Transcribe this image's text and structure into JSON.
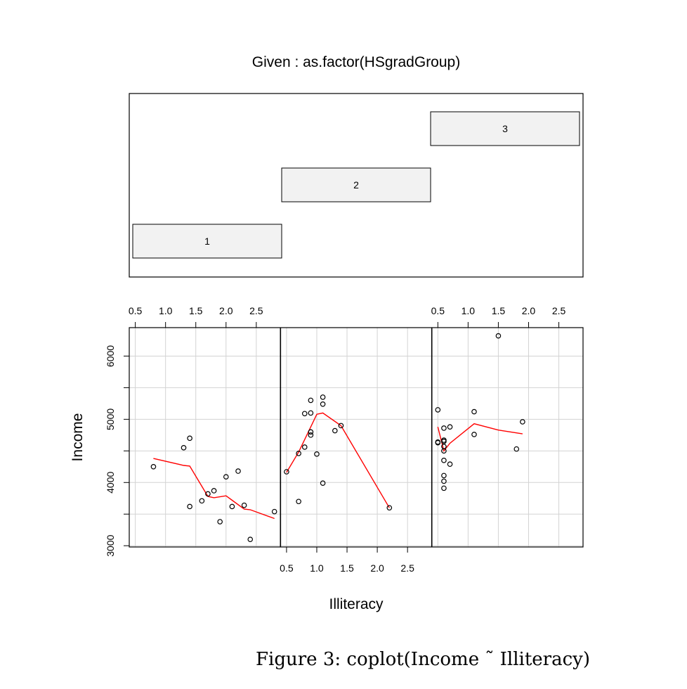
{
  "given": {
    "title": "Given : as.factor(HSgradGroup)",
    "levels": [
      "1",
      "2",
      "3"
    ]
  },
  "figure_caption": "Figure 3:  coplot(Income ˜ Illiteracy)",
  "colors": {
    "points": "#000000",
    "smooth": "#ff0000",
    "grid": "#d3d3d3",
    "given_box": "#f2f2f2"
  },
  "chart_data": {
    "type": "scatter",
    "xlabel": "Illiteracy",
    "ylabel": "Income",
    "xlim": [
      0.4,
      2.9
    ],
    "ylim": [
      2980,
      6450
    ],
    "x_ticks": [
      0.5,
      1.0,
      1.5,
      2.0,
      2.5
    ],
    "x_tick_labels": [
      "0.5",
      "1.0",
      "1.5",
      "2.0",
      "2.5"
    ],
    "y_ticks": [
      3000,
      4000,
      5000,
      6000
    ],
    "y_tick_labels": [
      "3000",
      "4000",
      "5000",
      "6000"
    ],
    "grid": true,
    "panels": [
      {
        "given": "1",
        "points": [
          [
            0.8,
            4250
          ],
          [
            1.3,
            4550
          ],
          [
            1.4,
            4700
          ],
          [
            1.4,
            3620
          ],
          [
            1.6,
            3710
          ],
          [
            1.7,
            3820
          ],
          [
            1.8,
            3870
          ],
          [
            1.9,
            3380
          ],
          [
            2.0,
            4090
          ],
          [
            2.1,
            3620
          ],
          [
            2.2,
            4180
          ],
          [
            2.3,
            3640
          ],
          [
            2.4,
            3100
          ],
          [
            2.8,
            3540
          ]
        ],
        "smooth": [
          [
            0.8,
            4380
          ],
          [
            1.3,
            4270
          ],
          [
            1.4,
            4260
          ],
          [
            1.7,
            3780
          ],
          [
            1.8,
            3760
          ],
          [
            2.0,
            3790
          ],
          [
            2.1,
            3720
          ],
          [
            2.3,
            3580
          ],
          [
            2.4,
            3570
          ],
          [
            2.8,
            3430
          ]
        ]
      },
      {
        "given": "2",
        "points": [
          [
            0.5,
            4170
          ],
          [
            0.7,
            4460
          ],
          [
            0.7,
            3700
          ],
          [
            0.8,
            4560
          ],
          [
            0.8,
            5090
          ],
          [
            0.9,
            4750
          ],
          [
            0.9,
            4800
          ],
          [
            0.9,
            5100
          ],
          [
            0.9,
            5300
          ],
          [
            1.0,
            4450
          ],
          [
            1.1,
            5350
          ],
          [
            1.1,
            5240
          ],
          [
            1.1,
            3990
          ],
          [
            1.3,
            4820
          ],
          [
            1.4,
            4900
          ],
          [
            2.2,
            3600
          ]
        ],
        "smooth": [
          [
            0.5,
            4160
          ],
          [
            0.7,
            4480
          ],
          [
            0.9,
            4880
          ],
          [
            1.0,
            5080
          ],
          [
            1.1,
            5100
          ],
          [
            1.4,
            4900
          ],
          [
            2.2,
            3600
          ]
        ]
      },
      {
        "given": "3",
        "points": [
          [
            0.5,
            5150
          ],
          [
            0.5,
            4640
          ],
          [
            0.5,
            4630
          ],
          [
            0.6,
            4860
          ],
          [
            0.6,
            4670
          ],
          [
            0.6,
            4650
          ],
          [
            0.6,
            4570
          ],
          [
            0.6,
            4500
          ],
          [
            0.6,
            4350
          ],
          [
            0.6,
            4110
          ],
          [
            0.6,
            4020
          ],
          [
            0.6,
            3910
          ],
          [
            0.7,
            4880
          ],
          [
            0.7,
            4290
          ],
          [
            1.1,
            5120
          ],
          [
            1.1,
            4760
          ],
          [
            1.5,
            6320
          ],
          [
            1.8,
            4530
          ],
          [
            1.9,
            4960
          ]
        ],
        "smooth": [
          [
            0.5,
            4880
          ],
          [
            0.6,
            4500
          ],
          [
            0.7,
            4620
          ],
          [
            1.1,
            4930
          ],
          [
            1.5,
            4830
          ],
          [
            1.9,
            4770
          ]
        ]
      }
    ]
  }
}
